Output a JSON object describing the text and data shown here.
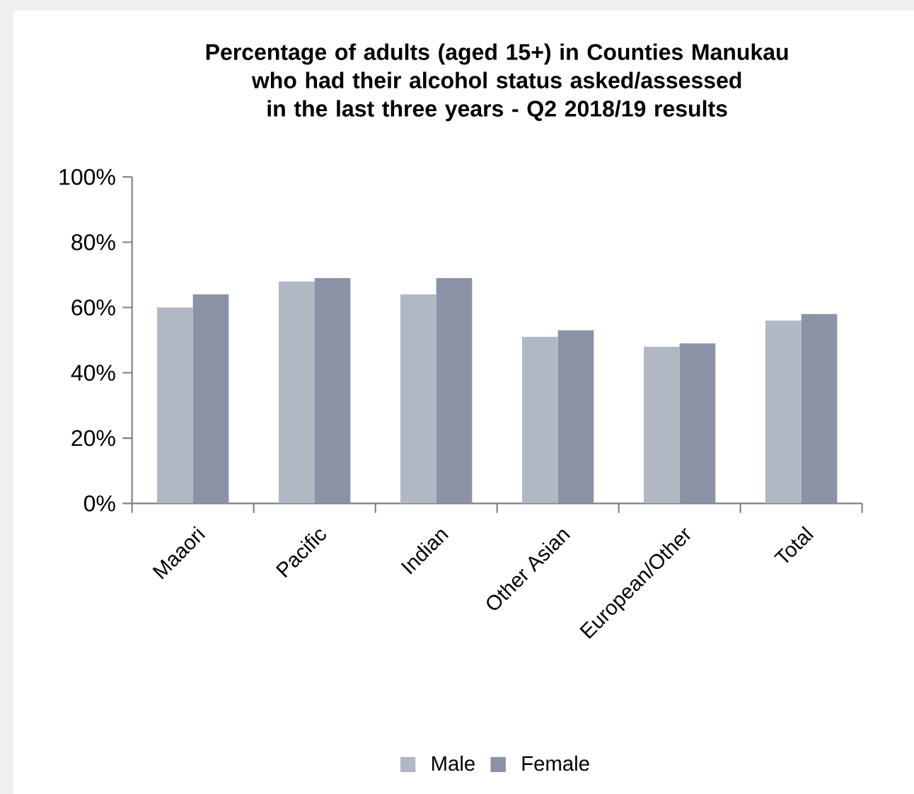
{
  "chart_data": {
    "type": "bar",
    "title": "Percentage of adults (aged 15+)  in Counties Manukau who had their alcohol status asked/assessed in the last three years - Q2 2018/19 results",
    "categories": [
      "Maaori",
      "Pacific",
      "Indian",
      "Other Asian",
      "European/Other",
      "Total"
    ],
    "series": [
      {
        "name": "Male",
        "color": "#b2b7c4",
        "values": [
          60,
          68,
          64,
          51,
          48,
          56
        ]
      },
      {
        "name": "Female",
        "color": "#8c92a6",
        "values": [
          64,
          69,
          69,
          53,
          49,
          58
        ]
      }
    ],
    "ylim": [
      0,
      100
    ],
    "yticks": [
      {
        "value": 0,
        "label": "0%"
      },
      {
        "value": 20,
        "label": "20%"
      },
      {
        "value": 40,
        "label": "40%"
      },
      {
        "value": 60,
        "label": "60%"
      },
      {
        "value": 80,
        "label": "80%"
      },
      {
        "value": 100,
        "label": "100%"
      }
    ],
    "grid": false,
    "legend": "bottom"
  }
}
